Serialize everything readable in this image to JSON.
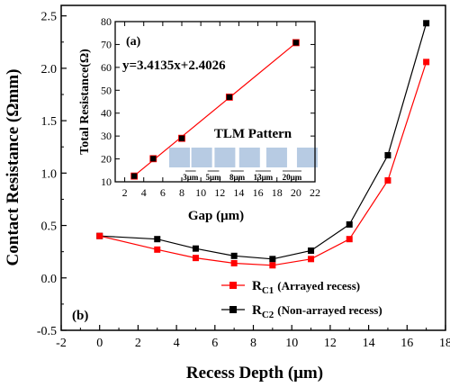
{
  "chart_data": [
    {
      "id": "main",
      "type": "line",
      "panel_label": "(b)",
      "xlabel": "Recess Depth (μm)",
      "ylabel": "Contact Resistance (Ωmm)",
      "xlim": [
        -2,
        18
      ],
      "ylim": [
        -0.5,
        2.6
      ],
      "xticks": [
        -2,
        0,
        2,
        4,
        6,
        8,
        10,
        12,
        14,
        16,
        18
      ],
      "yticks": [
        -0.5,
        0.0,
        0.5,
        1.0,
        1.5,
        2.0,
        2.5
      ],
      "ytick_labels": [
        "-0.5",
        "0.0",
        "0.5",
        "1.0",
        "1.5",
        "2.0",
        "2.5"
      ],
      "legend_position": "bottom-right",
      "x": [
        0,
        3,
        5,
        7,
        9,
        11,
        13,
        15,
        17
      ],
      "series": [
        {
          "name_main": "R",
          "name_sub": "C1",
          "name_desc": "(Arrayed recess)",
          "color": "#ff0000",
          "marker": "square",
          "values": [
            0.4,
            0.27,
            0.19,
            0.14,
            0.12,
            0.18,
            0.37,
            0.93,
            2.06
          ]
        },
        {
          "name_main": "R",
          "name_sub": "C2",
          "name_desc": "(Non-arrayed recess)",
          "color": "#000000",
          "marker": "square",
          "values": [
            0.4,
            0.37,
            0.28,
            0.21,
            0.18,
            0.26,
            0.51,
            1.17,
            2.43
          ]
        }
      ]
    },
    {
      "id": "inset",
      "type": "scatter",
      "panel_label": "(a)",
      "xlabel": "Gap (μm)",
      "ylabel": "Total Resistance(Ω)",
      "xlim": [
        1,
        22
      ],
      "ylim": [
        10,
        80
      ],
      "xticks": [
        2,
        4,
        6,
        8,
        10,
        12,
        14,
        16,
        18,
        20,
        22
      ],
      "yticks": [
        10,
        20,
        30,
        40,
        50,
        60,
        70,
        80
      ],
      "fit_equation": "y=3.4135x+2.4026",
      "fit": {
        "slope": 3.4135,
        "intercept": 2.4026,
        "color": "#ff0000"
      },
      "points": {
        "x": [
          3,
          5,
          8,
          13,
          20
        ],
        "y": [
          12.5,
          20.1,
          29.0,
          47.0,
          70.8
        ],
        "color": "#000000",
        "edge_color": "#ff0000"
      },
      "tlm": {
        "title": "TLM Pattern",
        "pad_color": "#b7cbe3",
        "gap_labels": [
          "3μm",
          "5μm",
          "8μm",
          "13μm",
          "20μm"
        ]
      }
    }
  ]
}
